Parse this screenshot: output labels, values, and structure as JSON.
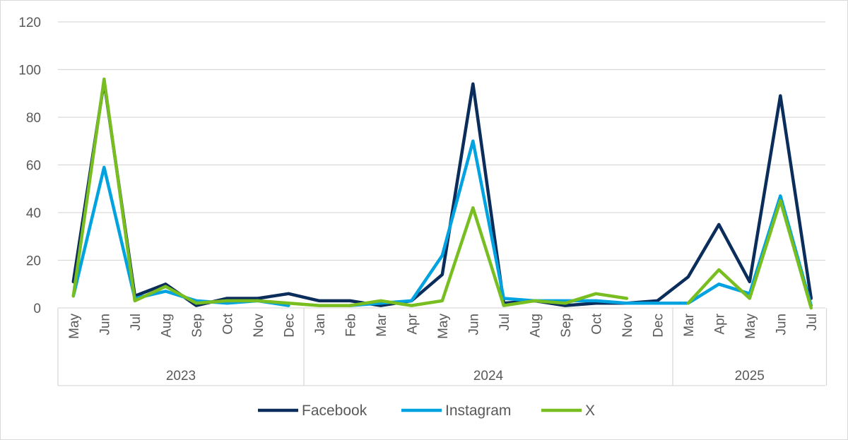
{
  "chart_data": {
    "type": "line",
    "title": "",
    "xlabel": "",
    "ylabel": "",
    "ylim": [
      0,
      120
    ],
    "yticks": [
      0,
      20,
      40,
      60,
      80,
      100,
      120
    ],
    "grid": true,
    "legend_placement": "bottom",
    "groups": [
      {
        "label": "2023",
        "months": [
          "May",
          "Jun",
          "Jul",
          "Aug",
          "Sep",
          "Oct",
          "Nov",
          "Dec"
        ]
      },
      {
        "label": "2024",
        "months": [
          "Jan",
          "Feb",
          "Mar",
          "Apr",
          "May",
          "Jun",
          "Jul",
          "Aug",
          "Sep",
          "Oct",
          "Nov",
          "Dec"
        ]
      },
      {
        "label": "2025",
        "months": [
          "Mar",
          "Apr",
          "May",
          "Jun",
          "Jul"
        ]
      }
    ],
    "series": [
      {
        "name": "Facebook",
        "color": "#0b2d5b",
        "values": [
          11,
          95,
          5,
          10,
          1,
          4,
          4,
          6,
          3,
          3,
          1,
          3,
          14,
          94,
          2,
          3,
          1,
          2,
          2,
          3,
          13,
          35,
          11,
          89,
          4
        ]
      },
      {
        "name": "Instagram",
        "color": "#00a3e0",
        "values": [
          5,
          59,
          4,
          7,
          3,
          2,
          3,
          1,
          null,
          1,
          2,
          3,
          22,
          70,
          4,
          3,
          3,
          3,
          2,
          2,
          2,
          10,
          6,
          47,
          1
        ]
      },
      {
        "name": "X",
        "color": "#78be20",
        "values": [
          5,
          96,
          3,
          9,
          2,
          3,
          3,
          2,
          1,
          1,
          3,
          1,
          3,
          42,
          1,
          3,
          2,
          6,
          4,
          null,
          2,
          16,
          4,
          45,
          0
        ]
      }
    ]
  }
}
